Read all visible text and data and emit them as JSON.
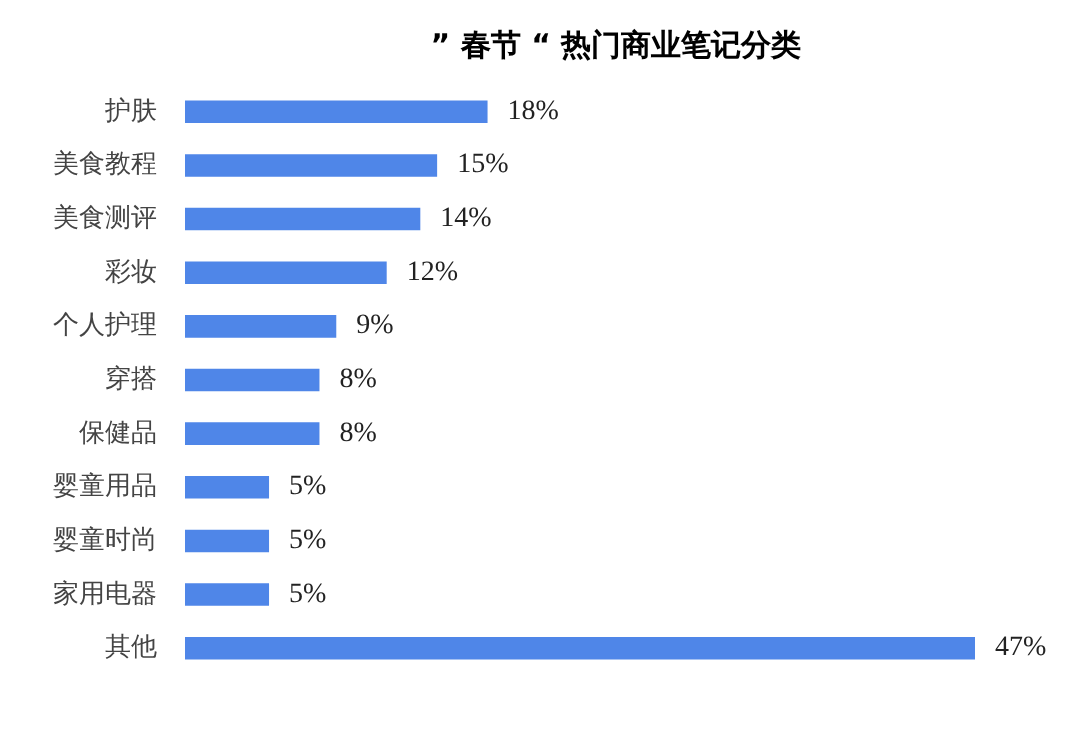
{
  "chart_data": {
    "type": "bar",
    "orientation": "horizontal",
    "title": "” 春节 “ 热门商业笔记分类",
    "categories": [
      "护肤",
      "美食教程",
      "美食测评",
      "彩妆",
      "个人护理",
      "穿搭",
      "保健品",
      "婴童用品",
      "婴童时尚",
      "家用电器",
      "其他"
    ],
    "values": [
      18,
      15,
      14,
      12,
      9,
      8,
      8,
      5,
      5,
      5,
      47
    ],
    "value_labels": [
      "18%",
      "15%",
      "14%",
      "12%",
      "9%",
      "8%",
      "8%",
      "5%",
      "5%",
      "5%",
      "47%"
    ],
    "color": "#4f86e8",
    "grid": false
  }
}
